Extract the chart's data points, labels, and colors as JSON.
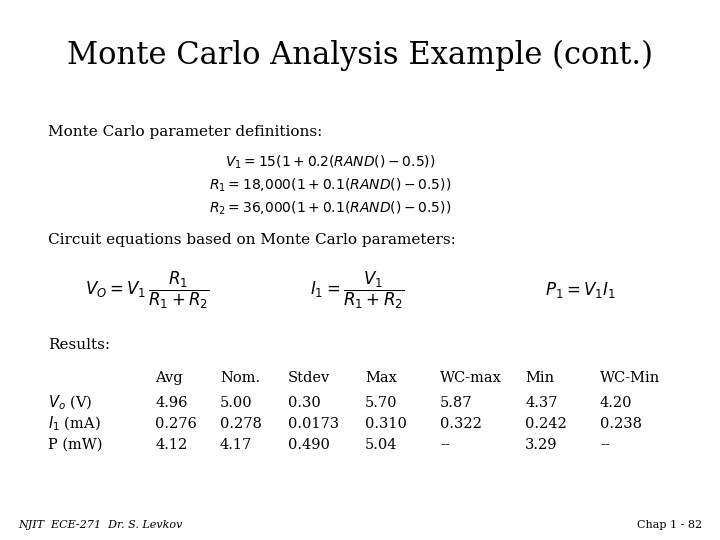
{
  "title": "Monte Carlo Analysis Example (cont.)",
  "bg_color": "#ffffff",
  "title_fontsize": 22,
  "footer_left": "NJIT  ECE-271  Dr. S. Levkov",
  "footer_right": "Chap 1 - 82",
  "section1_label": "Monte Carlo parameter definitions:",
  "section2_label": "Circuit equations based on Monte Carlo parameters:",
  "section3_label": "Results:",
  "col_headers": [
    "",
    "Avg",
    "Nom.",
    "Stdev",
    "Max",
    "WC-max",
    "Min",
    "WC-Min"
  ],
  "row1_label": "$V_o$ (V)",
  "row2_label": "$I_1$ (mA)",
  "row3_label": "P (mW)",
  "row1_data": [
    "4.96",
    "5.00",
    "0.30",
    "5.70",
    "5.87",
    "4.37",
    "4.20"
  ],
  "row2_data": [
    "0.276",
    "0.278",
    "0.0173",
    "0.310",
    "0.322",
    "0.242",
    "0.238"
  ],
  "row3_data": [
    "4.12",
    "4.17",
    "0.490",
    "5.04",
    "--",
    "3.29",
    "--"
  ]
}
